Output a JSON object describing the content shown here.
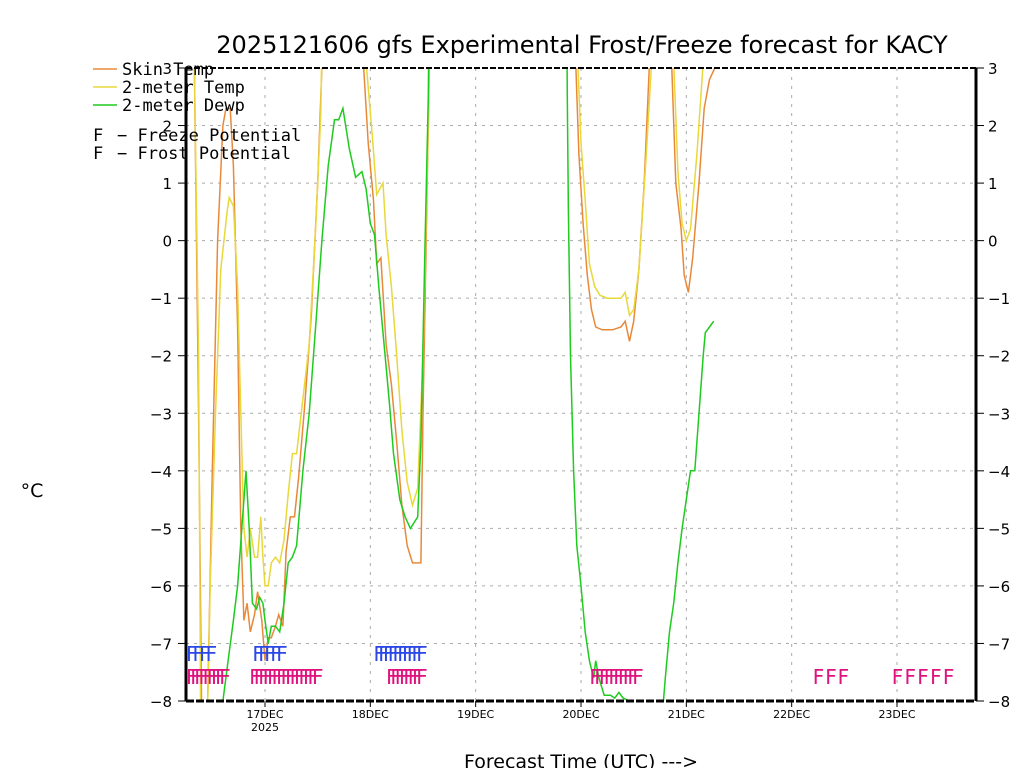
{
  "chart_data": {
    "type": "line",
    "title": "2025121606 gfs Experimental Frost/Freeze forecast for KACY",
    "xlabel": "Forecast Time (UTC) --->",
    "ylabel": "°C",
    "ylim": [
      -8,
      3
    ],
    "y_ticks": [
      3,
      2,
      1,
      0,
      -1,
      -2,
      -3,
      -4,
      -5,
      -6,
      -7,
      -8
    ],
    "y_tick_labels": [
      "3",
      "2",
      "1",
      "0",
      "−1",
      "−2",
      "−3",
      "−4",
      "−5",
      "−6",
      "−7",
      "−8"
    ],
    "x_unit": "days since 16DEC2025 00Z",
    "xlim": [
      0.25,
      7.75
    ],
    "x_ticks": [
      {
        "x": 1,
        "label": "17DEC",
        "sublabel": "2025"
      },
      {
        "x": 2,
        "label": "18DEC",
        "sublabel": ""
      },
      {
        "x": 3,
        "label": "19DEC",
        "sublabel": ""
      },
      {
        "x": 4,
        "label": "20DEC",
        "sublabel": ""
      },
      {
        "x": 5,
        "label": "21DEC",
        "sublabel": ""
      },
      {
        "x": 6,
        "label": "22DEC",
        "sublabel": ""
      },
      {
        "x": 7,
        "label": "23DEC",
        "sublabel": ""
      }
    ],
    "grid": true,
    "legend": {
      "placement": "top-left",
      "entries": [
        {
          "label": "Skin Temp",
          "color": "#e8893a",
          "kind": "line"
        },
        {
          "label": "2-meter Temp",
          "color": "#e8d83a",
          "kind": "line"
        },
        {
          "label": "2-meter Dewp",
          "color": "#1ecb1e",
          "kind": "line"
        },
        {
          "label": "F - Freeze Potential",
          "color": "#e0127e",
          "kind": "marker"
        },
        {
          "label": "F - Frost Potential",
          "color": "#2b47e6",
          "kind": "marker"
        }
      ]
    },
    "series": [
      {
        "name": "Skin Temp",
        "color": "#e8893a",
        "points": [
          [
            0.25,
            8
          ],
          [
            0.33,
            3
          ],
          [
            0.37,
            -3
          ],
          [
            0.4,
            -8.5
          ],
          [
            0.45,
            -8.5
          ],
          [
            0.5,
            -4
          ],
          [
            0.55,
            0
          ],
          [
            0.6,
            2.0
          ],
          [
            0.63,
            2.3
          ],
          [
            0.67,
            2.3
          ],
          [
            0.7,
            1.3
          ],
          [
            0.74,
            -1.5
          ],
          [
            0.77,
            -5
          ],
          [
            0.8,
            -6.6
          ],
          [
            0.83,
            -6.3
          ],
          [
            0.86,
            -6.8
          ],
          [
            0.9,
            -6.5
          ],
          [
            0.93,
            -6.1
          ],
          [
            0.97,
            -6.6
          ],
          [
            1.0,
            -7.3
          ],
          [
            1.03,
            -6.9
          ],
          [
            1.06,
            -6.9
          ],
          [
            1.1,
            -6.7
          ],
          [
            1.13,
            -6.5
          ],
          [
            1.17,
            -6.7
          ],
          [
            1.2,
            -5.4
          ],
          [
            1.24,
            -4.8
          ],
          [
            1.28,
            -4.8
          ],
          [
            1.32,
            -4.1
          ],
          [
            1.38,
            -2.8
          ],
          [
            1.44,
            -1.3
          ],
          [
            1.5,
            1.0
          ],
          [
            1.55,
            3.5
          ],
          [
            1.6,
            8
          ],
          [
            1.9,
            8
          ],
          [
            1.93,
            3.2
          ],
          [
            1.98,
            1.7
          ],
          [
            2.03,
            0.7
          ],
          [
            2.06,
            -0.4
          ],
          [
            2.1,
            -0.3
          ],
          [
            2.15,
            -1.8
          ],
          [
            2.2,
            -2.5
          ],
          [
            2.25,
            -3.5
          ],
          [
            2.3,
            -4.6
          ],
          [
            2.35,
            -5.3
          ],
          [
            2.4,
            -5.6
          ],
          [
            2.45,
            -5.6
          ],
          [
            2.48,
            -5.6
          ],
          [
            2.5,
            -3
          ],
          [
            2.53,
            0
          ],
          [
            2.56,
            3
          ],
          [
            2.6,
            8
          ],
          [
            3.9,
            8
          ],
          [
            3.95,
            3.1
          ],
          [
            3.98,
            1.5
          ],
          [
            4.02,
            0.3
          ],
          [
            4.06,
            -0.6
          ],
          [
            4.1,
            -1.2
          ],
          [
            4.14,
            -1.5
          ],
          [
            4.2,
            -1.55
          ],
          [
            4.3,
            -1.55
          ],
          [
            4.38,
            -1.5
          ],
          [
            4.42,
            -1.4
          ],
          [
            4.46,
            -1.75
          ],
          [
            4.5,
            -1.4
          ],
          [
            4.55,
            -0.5
          ],
          [
            4.6,
            1
          ],
          [
            4.65,
            3.1
          ],
          [
            4.7,
            8
          ],
          [
            4.83,
            8
          ],
          [
            4.86,
            3.1
          ],
          [
            4.9,
            1
          ],
          [
            4.95,
            0.2
          ],
          [
            4.98,
            -0.6
          ],
          [
            5.02,
            -0.9
          ],
          [
            5.06,
            -0.3
          ],
          [
            5.12,
            1.0
          ],
          [
            5.17,
            2.3
          ],
          [
            5.22,
            2.8
          ],
          [
            5.27,
            3.0
          ]
        ]
      },
      {
        "name": "2-meter Temp",
        "color": "#e8d83a",
        "points": [
          [
            0.25,
            8
          ],
          [
            0.33,
            3
          ],
          [
            0.37,
            -2
          ],
          [
            0.39,
            -8.5
          ],
          [
            0.45,
            -8.5
          ],
          [
            0.48,
            -6
          ],
          [
            0.53,
            -3
          ],
          [
            0.58,
            -0.5
          ],
          [
            0.64,
            0.5
          ],
          [
            0.66,
            0.75
          ],
          [
            0.7,
            0.6
          ],
          [
            0.74,
            -0.8
          ],
          [
            0.77,
            -3
          ],
          [
            0.8,
            -5.0
          ],
          [
            0.83,
            -5.5
          ],
          [
            0.86,
            -5.0
          ],
          [
            0.9,
            -5.5
          ],
          [
            0.93,
            -5.5
          ],
          [
            0.96,
            -4.8
          ],
          [
            0.98,
            -5.5
          ],
          [
            1.0,
            -6.0
          ],
          [
            1.03,
            -6.0
          ],
          [
            1.06,
            -5.6
          ],
          [
            1.1,
            -5.5
          ],
          [
            1.14,
            -5.6
          ],
          [
            1.18,
            -5.2
          ],
          [
            1.22,
            -4.4
          ],
          [
            1.26,
            -3.7
          ],
          [
            1.3,
            -3.7
          ],
          [
            1.35,
            -2.9
          ],
          [
            1.42,
            -1.8
          ],
          [
            1.48,
            0.2
          ],
          [
            1.53,
            2.2
          ],
          [
            1.58,
            8
          ],
          [
            1.9,
            8
          ],
          [
            1.96,
            3.1
          ],
          [
            2.02,
            1.8
          ],
          [
            2.06,
            0.8
          ],
          [
            2.09,
            0.9
          ],
          [
            2.12,
            1.0
          ],
          [
            2.15,
            0.1
          ],
          [
            2.2,
            -0.8
          ],
          [
            2.25,
            -2
          ],
          [
            2.3,
            -3.3
          ],
          [
            2.35,
            -4.2
          ],
          [
            2.4,
            -4.6
          ],
          [
            2.45,
            -4.3
          ],
          [
            2.5,
            -2
          ],
          [
            2.55,
            2
          ],
          [
            2.6,
            8
          ],
          [
            3.92,
            8
          ],
          [
            3.97,
            3.1
          ],
          [
            4.0,
            1.7
          ],
          [
            4.04,
            0.7
          ],
          [
            4.08,
            -0.4
          ],
          [
            4.13,
            -0.8
          ],
          [
            4.18,
            -0.95
          ],
          [
            4.25,
            -1.0
          ],
          [
            4.33,
            -1.0
          ],
          [
            4.38,
            -1.0
          ],
          [
            4.42,
            -0.9
          ],
          [
            4.46,
            -1.3
          ],
          [
            4.5,
            -1.2
          ],
          [
            4.55,
            -0.5
          ],
          [
            4.62,
            1.5
          ],
          [
            4.67,
            3.1
          ],
          [
            4.72,
            8
          ],
          [
            4.85,
            8
          ],
          [
            4.88,
            3.1
          ],
          [
            4.92,
            1.2
          ],
          [
            4.96,
            0.3
          ],
          [
            5.0,
            0.0
          ],
          [
            5.04,
            0.2
          ],
          [
            5.1,
            1.5
          ],
          [
            5.16,
            3.1
          ],
          [
            5.2,
            8
          ]
        ]
      },
      {
        "name": "2-meter Dewp",
        "color": "#1ecb1e",
        "points": [
          [
            0.55,
            -8.5
          ],
          [
            0.6,
            -8.0
          ],
          [
            0.65,
            -7.3
          ],
          [
            0.7,
            -6.6
          ],
          [
            0.74,
            -6.0
          ],
          [
            0.78,
            -5.0
          ],
          [
            0.82,
            -4.0
          ],
          [
            0.85,
            -5.0
          ],
          [
            0.88,
            -6.3
          ],
          [
            0.92,
            -6.4
          ],
          [
            0.95,
            -6.2
          ],
          [
            0.98,
            -6.3
          ],
          [
            1.0,
            -6.6
          ],
          [
            1.03,
            -7.0
          ],
          [
            1.06,
            -6.7
          ],
          [
            1.1,
            -6.7
          ],
          [
            1.14,
            -6.8
          ],
          [
            1.18,
            -6.3
          ],
          [
            1.22,
            -5.6
          ],
          [
            1.26,
            -5.5
          ],
          [
            1.3,
            -5.3
          ],
          [
            1.36,
            -4.0
          ],
          [
            1.42,
            -3.0
          ],
          [
            1.48,
            -1.5
          ],
          [
            1.54,
            0.0
          ],
          [
            1.6,
            1.3
          ],
          [
            1.66,
            2.1
          ],
          [
            1.7,
            2.1
          ],
          [
            1.74,
            2.3
          ],
          [
            1.8,
            1.6
          ],
          [
            1.86,
            1.1
          ],
          [
            1.92,
            1.2
          ],
          [
            1.96,
            0.9
          ],
          [
            2.0,
            0.3
          ],
          [
            2.04,
            0.1
          ],
          [
            2.08,
            -0.8
          ],
          [
            2.12,
            -1.6
          ],
          [
            2.18,
            -2.8
          ],
          [
            2.22,
            -3.7
          ],
          [
            2.28,
            -4.5
          ],
          [
            2.33,
            -4.8
          ],
          [
            2.38,
            -5.0
          ],
          [
            2.45,
            -4.8
          ],
          [
            2.48,
            -3.5
          ],
          [
            2.52,
            0
          ],
          [
            2.55,
            2.5
          ],
          [
            2.58,
            8
          ],
          [
            3.85,
            8
          ],
          [
            3.87,
            2.5
          ],
          [
            3.88,
            0.5
          ],
          [
            3.9,
            -2.0
          ],
          [
            3.93,
            -4.0
          ],
          [
            3.96,
            -5.3
          ],
          [
            4.0,
            -6.0
          ],
          [
            4.04,
            -6.8
          ],
          [
            4.08,
            -7.3
          ],
          [
            4.12,
            -7.6
          ],
          [
            4.14,
            -7.3
          ],
          [
            4.17,
            -7.6
          ],
          [
            4.22,
            -7.9
          ],
          [
            4.28,
            -7.9
          ],
          [
            4.32,
            -7.95
          ],
          [
            4.36,
            -7.85
          ],
          [
            4.4,
            -7.95
          ],
          [
            4.46,
            -8.0
          ],
          [
            4.5,
            -8.5
          ],
          [
            4.76,
            -8.5
          ],
          [
            4.8,
            -7.6
          ],
          [
            4.84,
            -6.8
          ],
          [
            4.88,
            -6.3
          ],
          [
            4.92,
            -5.6
          ],
          [
            4.96,
            -5.0
          ],
          [
            5.0,
            -4.5
          ],
          [
            5.04,
            -4.0
          ],
          [
            5.08,
            -4.0
          ],
          [
            5.12,
            -3.0
          ],
          [
            5.16,
            -2.0
          ],
          [
            5.18,
            -1.6
          ],
          [
            5.22,
            -1.5
          ],
          [
            5.26,
            -1.4
          ]
        ]
      }
    ],
    "freeze_potential": {
      "label": "F - Freeze Potential",
      "color": "#e0127e",
      "y": -7.55,
      "runs": [
        {
          "x_start": 0.25,
          "x_end": 0.68,
          "text": "FFFFFFFFF"
        },
        {
          "x_start": 0.85,
          "x_end": 1.56,
          "text": "FFFFFFFFFFFFFFF"
        },
        {
          "x_start": 2.15,
          "x_end": 2.55,
          "text": "FFFFFFFF"
        },
        {
          "x_start": 4.08,
          "x_end": 4.6,
          "text": "FFFFFFFFFF"
        },
        {
          "x_start": 6.2,
          "x_end": 6.55,
          "text": "FFF"
        },
        {
          "x_start": 6.95,
          "x_end": 7.55,
          "text": "FFFFF"
        }
      ]
    },
    "frost_potential": {
      "label": "F - Frost Potential",
      "color": "#2b47e6",
      "y": -7.15,
      "runs": [
        {
          "x_start": 0.25,
          "x_end": 0.55,
          "text": "FFFF"
        },
        {
          "x_start": 0.88,
          "x_end": 1.22,
          "text": "FFFFF"
        },
        {
          "x_start": 2.03,
          "x_end": 2.55,
          "text": "FFFFFFFFFF"
        }
      ]
    }
  }
}
